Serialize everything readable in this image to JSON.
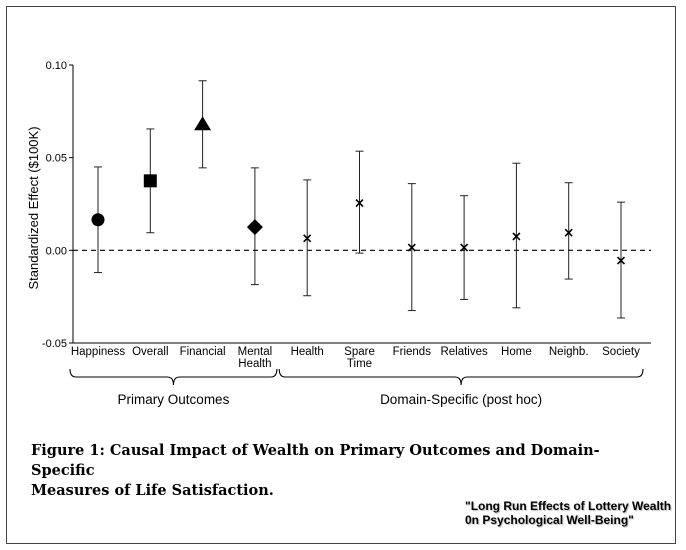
{
  "chart_data": {
    "type": "scatter",
    "ylabel": "Standardized Effect ($100K)",
    "ylim": [
      -0.05,
      0.1
    ],
    "yticks": [
      "0.10",
      "0.05",
      "0.00",
      "-0.05"
    ],
    "ytick_values": [
      0.1,
      0.05,
      0.0,
      -0.05
    ],
    "reference_line": 0.0,
    "grid": false,
    "categories": [
      {
        "label": [
          "Happiness"
        ],
        "estimate": 0.0165,
        "ci_low": -0.012,
        "ci_high": 0.045,
        "marker": "circle"
      },
      {
        "label": [
          "Overall"
        ],
        "estimate": 0.0375,
        "ci_low": 0.0095,
        "ci_high": 0.0655,
        "marker": "square"
      },
      {
        "label": [
          "Financial"
        ],
        "estimate": 0.068,
        "ci_low": 0.0445,
        "ci_high": 0.0915,
        "marker": "triangle"
      },
      {
        "label": [
          "Mental",
          "Health"
        ],
        "estimate": 0.0125,
        "ci_low": -0.0185,
        "ci_high": 0.0445,
        "marker": "diamond"
      },
      {
        "label": [
          "Health"
        ],
        "estimate": 0.0065,
        "ci_low": -0.0245,
        "ci_high": 0.038,
        "marker": "x"
      },
      {
        "label": [
          "Spare",
          "Time"
        ],
        "estimate": 0.0255,
        "ci_low": -0.0015,
        "ci_high": 0.0535,
        "marker": "x"
      },
      {
        "label": [
          "Friends"
        ],
        "estimate": 0.0015,
        "ci_low": -0.0325,
        "ci_high": 0.036,
        "marker": "x"
      },
      {
        "label": [
          "Relatives"
        ],
        "estimate": 0.0015,
        "ci_low": -0.0265,
        "ci_high": 0.0295,
        "marker": "x"
      },
      {
        "label": [
          "Home"
        ],
        "estimate": 0.0075,
        "ci_low": -0.031,
        "ci_high": 0.047,
        "marker": "x"
      },
      {
        "label": [
          "Neighb."
        ],
        "estimate": 0.0095,
        "ci_low": -0.0155,
        "ci_high": 0.0365,
        "marker": "x"
      },
      {
        "label": [
          "Society"
        ],
        "estimate": -0.0055,
        "ci_low": -0.0365,
        "ci_high": 0.026,
        "marker": "x"
      }
    ],
    "groups": [
      {
        "label": "Primary Outcomes",
        "from": 0,
        "to": 3
      },
      {
        "label": "Domain-Specific (post hoc)",
        "from": 4,
        "to": 10
      }
    ]
  },
  "caption": {
    "line1": "Figure 1: Causal Impact of Wealth on Primary Outcomes and Domain-Specific",
    "line2": "Measures of Life Satisfaction."
  },
  "source": {
    "line1": "\"Long Run Effects of Lottery Wealth",
    "line2": "0n Psychological Well-Being\""
  }
}
